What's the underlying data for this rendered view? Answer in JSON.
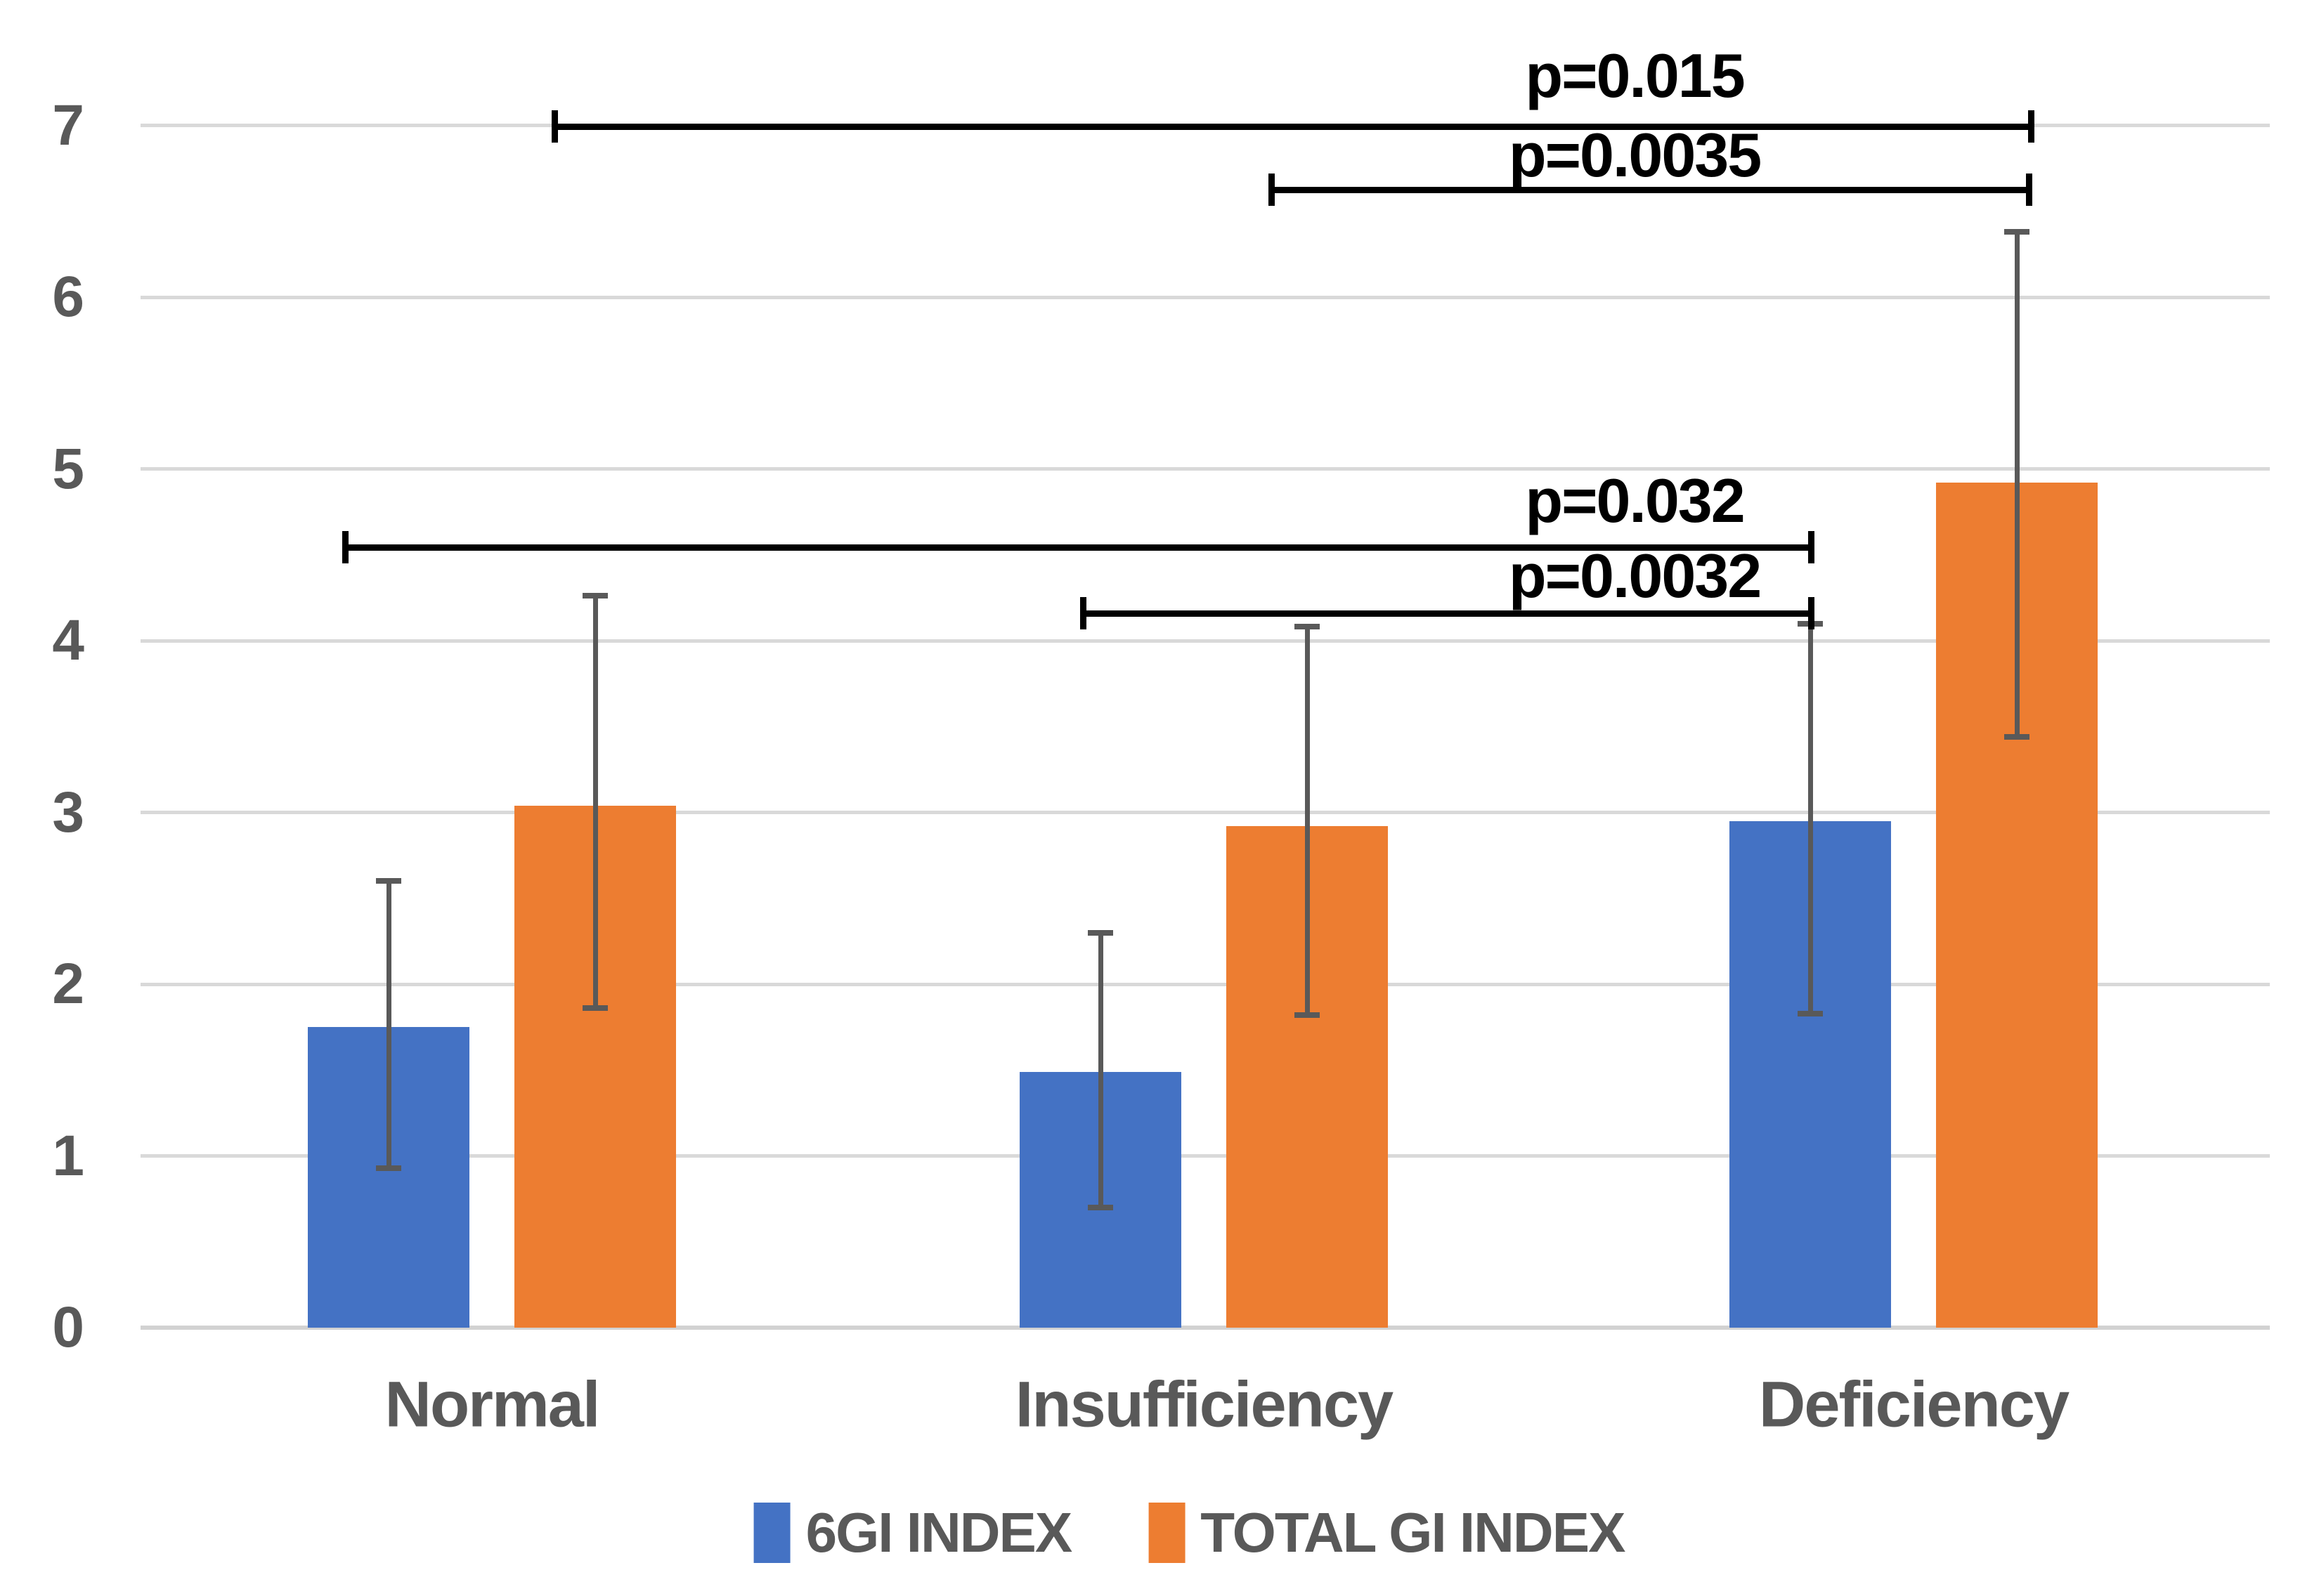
{
  "chart_data": {
    "type": "bar",
    "title": "",
    "xlabel": "",
    "ylabel": "",
    "categories": [
      "Normal",
      "Insufficiency",
      "Deficiency"
    ],
    "series": [
      {
        "name": "6GI INDEX",
        "color": "#4472C4",
        "values": [
          1.75,
          1.49,
          2.95
        ],
        "error_low": [
          0.93,
          0.7,
          1.83
        ],
        "error_high": [
          2.6,
          2.3,
          4.1
        ]
      },
      {
        "name": "TOTAL GI INDEX",
        "color": "#ED7D31",
        "values": [
          3.04,
          2.92,
          4.92
        ],
        "error_low": [
          1.86,
          1.82,
          3.44
        ],
        "error_high": [
          4.26,
          4.08,
          6.38
        ]
      }
    ],
    "ylim": [
      0,
      7
    ],
    "y_ticks": [
      "0",
      "1",
      "2",
      "3",
      "4",
      "5",
      "6",
      "7"
    ],
    "grid": true,
    "legend_position": "bottom",
    "error_bar_color": "#595959",
    "gridline_color": "#d9d9d9",
    "significance_brackets": [
      {
        "label": "p=0.015",
        "series": "TOTAL GI INDEX",
        "from_category": "Normal",
        "to_category": "Deficiency",
        "y_level": 7.0
      },
      {
        "label": "p=0.0035",
        "series": "TOTAL GI INDEX",
        "from_category": "Insufficiency",
        "to_category": "Deficiency",
        "y_level": 6.63
      },
      {
        "label": "p=0.032",
        "series": "6GI INDEX",
        "from_category": "Normal",
        "to_category": "Deficiency",
        "y_level": 4.54
      },
      {
        "label": "p=0.0032",
        "series": "6GI INDEX",
        "from_category": "Insufficiency",
        "to_category": "Deficiency",
        "y_level": 4.16
      }
    ]
  }
}
